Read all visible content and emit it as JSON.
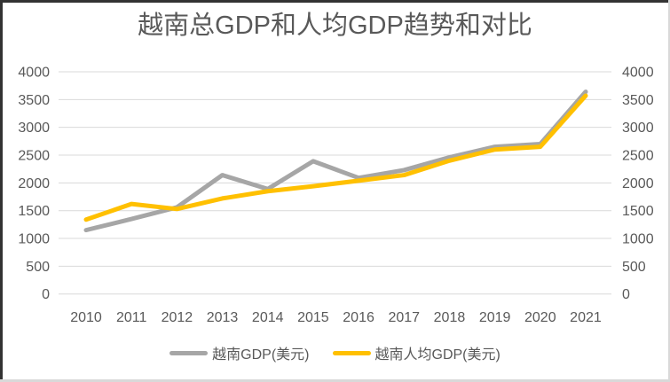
{
  "window": {
    "background": "#ffffff",
    "border_dark_color": "#333333",
    "border_light_color": "#d9d9d9",
    "text_color": "#595959"
  },
  "chart_data": {
    "type": "line",
    "title": "越南总GDP和人均GDP趋势和对比",
    "categories": [
      "2010",
      "2011",
      "2012",
      "2013",
      "2014",
      "2015",
      "2016",
      "2017",
      "2018",
      "2019",
      "2020",
      "2021"
    ],
    "series": [
      {
        "name": "越南GDP(美元)",
        "color": "#a6a6a6",
        "values": [
          1150,
          1350,
          1560,
          2140,
          1890,
          2390,
          2090,
          2230,
          2460,
          2650,
          2700,
          3640
        ]
      },
      {
        "name": "越南人均GDP(美元)",
        "color": "#ffc000",
        "values": [
          1340,
          1620,
          1530,
          1720,
          1850,
          1940,
          2040,
          2140,
          2400,
          2600,
          2650,
          3570
        ]
      }
    ],
    "xlabel": "",
    "ylabel": "",
    "ylim": [
      0,
      4000
    ],
    "y_ticks": [
      0,
      500,
      1000,
      1500,
      2000,
      2500,
      3000,
      3500,
      4000
    ],
    "grid": true,
    "gridline_color": "#d9d9d9",
    "axis_text_color": "#595959",
    "left_axis_labels": [
      "4000",
      "3500",
      "3000",
      "2500",
      "2000",
      "1500",
      "1000",
      "500",
      "0"
    ],
    "right_axis_labels": [
      "4000",
      "3500",
      "3000",
      "2500",
      "2000",
      "1500",
      "1000",
      "500",
      "0"
    ],
    "legend_position": "bottom"
  }
}
